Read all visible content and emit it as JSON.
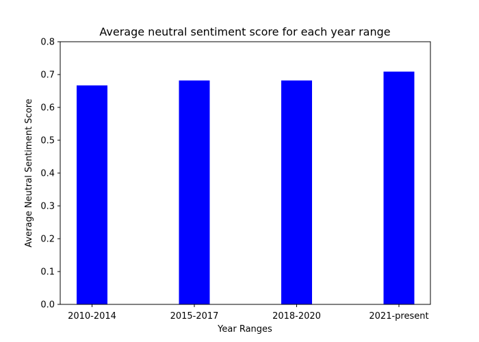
{
  "chart_data": {
    "type": "bar",
    "title": "Average neutral sentiment score for each year range",
    "xlabel": "Year Ranges",
    "ylabel": "Average Neutral Sentiment Score",
    "categories": [
      "2010-2014",
      "2015-2017",
      "2018-2020",
      "2021-present"
    ],
    "values": [
      0.667,
      0.682,
      0.682,
      0.709
    ],
    "ylim": [
      0,
      0.8
    ],
    "yticks": [
      "0.0",
      "0.1",
      "0.2",
      "0.3",
      "0.4",
      "0.5",
      "0.6",
      "0.7",
      "0.8"
    ],
    "bar_color": "#0000ff",
    "grid": false,
    "legend": "none"
  }
}
